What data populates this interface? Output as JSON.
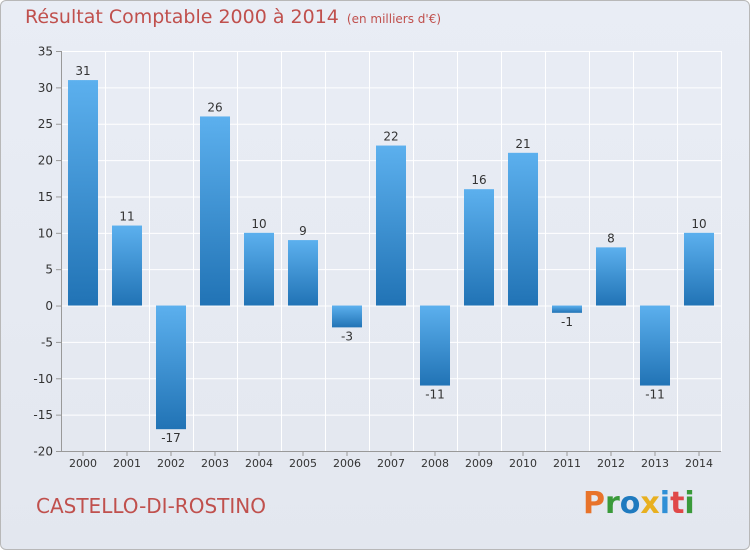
{
  "title": "Résultat Comptable 2000 à 2014",
  "subtitle": "(en milliers d'€)",
  "town": "CASTELLO-DI-ROSTINO",
  "logo": {
    "text": "Proxiti",
    "colors": [
      "#e8732a",
      "#3a9a3a",
      "#1f7abf",
      "#e8b020",
      "#2f8fd6",
      "#e04848",
      "#3a9a3a"
    ]
  },
  "colors": {
    "bar_light": "#5cb0ee",
    "bar_dark": "#2173b5",
    "grid": "#ffffff",
    "axis_text": "#333333",
    "title": "#c0504d"
  },
  "chart_data": {
    "type": "bar",
    "title": "Résultat Comptable 2000 à 2014",
    "subtitle": "(en milliers d'€)",
    "categories": [
      "2000",
      "2001",
      "2002",
      "2003",
      "2004",
      "2005",
      "2006",
      "2007",
      "2008",
      "2009",
      "2010",
      "2011",
      "2012",
      "2013",
      "2014"
    ],
    "values": [
      31,
      11,
      -17,
      26,
      10,
      9,
      -3,
      22,
      -11,
      16,
      21,
      -1,
      8,
      -11,
      10
    ],
    "value_labels": [
      "31",
      "11",
      "-17",
      "26",
      "10",
      "9",
      "-3",
      "22",
      "-11",
      "16",
      "21",
      "-1",
      "8",
      "-11",
      "10"
    ],
    "ylim": [
      -20,
      35
    ],
    "yticks": [
      -20,
      -15,
      -10,
      -5,
      0,
      5,
      10,
      15,
      20,
      25,
      30,
      35
    ],
    "xlabel": "",
    "ylabel": "",
    "grid": true
  }
}
